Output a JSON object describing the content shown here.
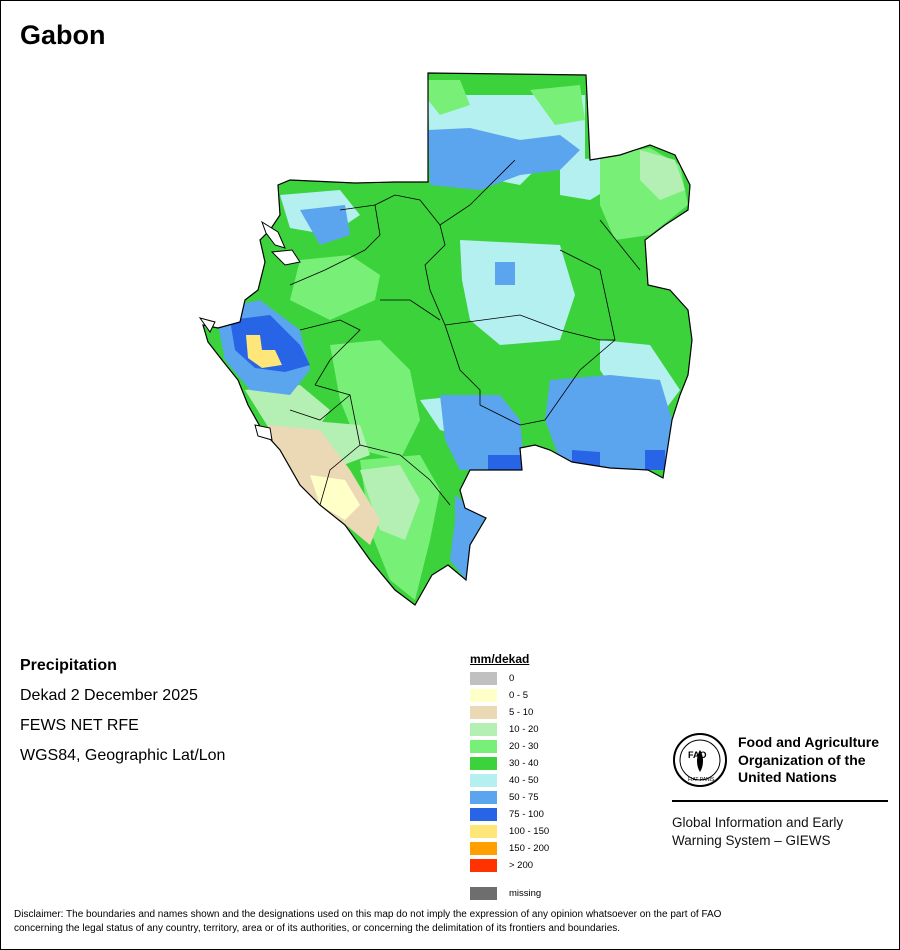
{
  "map_title": "Gabon",
  "info": {
    "variable": "Precipitation",
    "period": "Dekad 2 December 2025",
    "source": "FEWS NET RFE",
    "projection": "WGS84, Geographic Lat/Lon"
  },
  "legend": {
    "title": "mm/dekad",
    "classes": [
      {
        "label": "0",
        "color": "#c0c0c0"
      },
      {
        "label": "0 - 5",
        "color": "#ffffc8"
      },
      {
        "label": "5 - 10",
        "color": "#ebd8b4"
      },
      {
        "label": "10 - 20",
        "color": "#b4f0b4"
      },
      {
        "label": "20 - 30",
        "color": "#78f078"
      },
      {
        "label": "30 - 40",
        "color": "#3cd23c"
      },
      {
        "label": "40 - 50",
        "color": "#b4f0f0"
      },
      {
        "label": "50 - 75",
        "color": "#5aa5ee"
      },
      {
        "label": "75 - 100",
        "color": "#2864e6"
      },
      {
        "label": "100 - 150",
        "color": "#ffe678"
      },
      {
        "label": "150 - 200",
        "color": "#ffa000"
      },
      {
        "label": "> 200",
        "color": "#ff3200"
      }
    ],
    "missing": {
      "label": "missing",
      "color": "#6e6e6e"
    }
  },
  "org": {
    "logo_text": "FAO",
    "logo_motto": "FIAT PANIS",
    "name_line1": "Food and Agriculture",
    "name_line2": "Organization of the",
    "name_line3": "United Nations",
    "giews_line1": "Global Information and Early",
    "giews_line2": "Warning System – GIEWS"
  },
  "disclaimer_line1": "Disclaimer: The boundaries and names shown and the designations used on this map do not imply the expression of any opinion whatsoever on the part of FAO",
  "disclaimer_line2": "concerning the legal status of any country, territory, area or of its authorities, or concerning the delimitation of its frontiers and boundaries."
}
